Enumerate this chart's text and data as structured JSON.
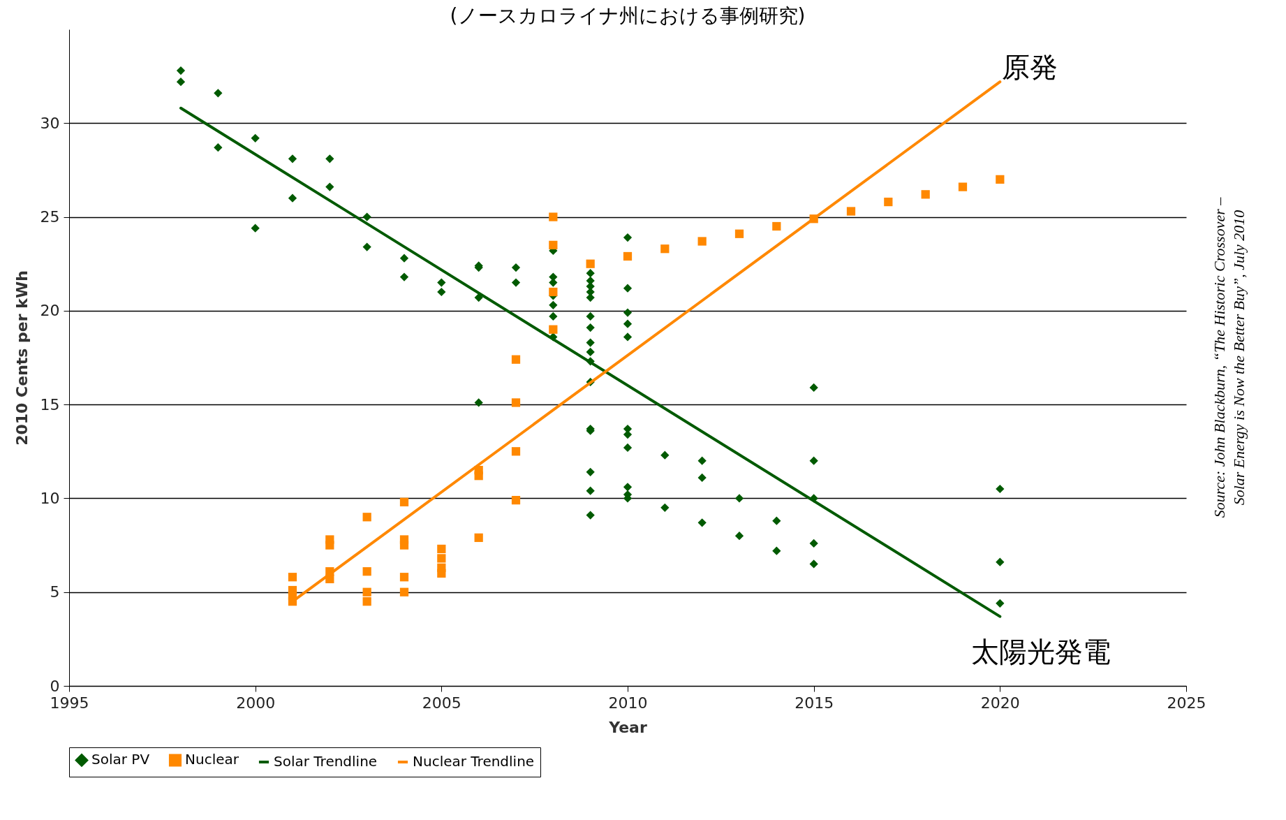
{
  "chart_data": {
    "type": "scatter",
    "title": "(ノースカロライナ州における事例研究)",
    "xlabel": "Year",
    "ylabel": "2010 Cents per kWh",
    "xlim": [
      1995,
      2025
    ],
    "xticks": [
      1995,
      2000,
      2005,
      2010,
      2015,
      2020,
      2025
    ],
    "ylim": [
      0,
      35
    ],
    "yticks": [
      0,
      5,
      10,
      15,
      20,
      25,
      30
    ],
    "grid": "y",
    "legend": "bottom",
    "series": [
      {
        "name": "Solar PV",
        "type": "scatter",
        "marker": "diamond",
        "color": "#005a00",
        "x": [
          1998,
          1998,
          1999,
          1999,
          2000,
          2000,
          2001,
          2001,
          2002,
          2002,
          2003,
          2003,
          2004,
          2004,
          2005,
          2005,
          2006,
          2006,
          2006,
          2006,
          2007,
          2007,
          2008,
          2008,
          2008,
          2008,
          2008,
          2008,
          2008,
          2009,
          2009,
          2009,
          2009,
          2009,
          2009,
          2009,
          2009,
          2009,
          2009,
          2009,
          2009,
          2009,
          2009,
          2009,
          2009,
          2010,
          2010,
          2010,
          2010,
          2010,
          2010,
          2010,
          2010,
          2010,
          2010,
          2010,
          2011,
          2011,
          2012,
          2012,
          2012,
          2013,
          2013,
          2014,
          2014,
          2015,
          2015,
          2015,
          2015,
          2015,
          2020,
          2020,
          2020
        ],
        "values": [
          32.8,
          32.2,
          31.6,
          28.7,
          29.2,
          24.4,
          28.1,
          26.0,
          28.1,
          26.6,
          25.0,
          23.4,
          22.8,
          21.8,
          21.5,
          21.0,
          22.4,
          22.3,
          20.7,
          15.1,
          22.3,
          21.5,
          23.2,
          21.8,
          21.5,
          20.8,
          20.3,
          19.7,
          18.6,
          22.0,
          21.6,
          21.3,
          21.0,
          20.7,
          19.7,
          19.1,
          18.3,
          17.8,
          17.3,
          16.2,
          13.7,
          13.6,
          11.4,
          10.4,
          9.1,
          23.9,
          21.2,
          19.9,
          19.3,
          18.6,
          13.7,
          13.4,
          12.7,
          10.6,
          10.2,
          10.0,
          12.3,
          9.5,
          12.0,
          11.1,
          8.7,
          10.0,
          8.0,
          8.8,
          7.2,
          15.9,
          12.0,
          10.0,
          7.6,
          6.5,
          10.5,
          6.6,
          4.4
        ]
      },
      {
        "name": "Nuclear",
        "type": "scatter",
        "marker": "square",
        "color": "#ff8800",
        "x": [
          2001,
          2001,
          2001,
          2001,
          2002,
          2002,
          2002,
          2002,
          2003,
          2003,
          2003,
          2003,
          2004,
          2004,
          2004,
          2004,
          2004,
          2005,
          2005,
          2005,
          2005,
          2006,
          2006,
          2006,
          2007,
          2007,
          2007,
          2007,
          2008,
          2008,
          2008,
          2008,
          2009,
          2010,
          2011,
          2012,
          2013,
          2014,
          2015,
          2016,
          2017,
          2018,
          2019,
          2020
        ],
        "values": [
          5.8,
          5.1,
          4.8,
          4.5,
          7.8,
          7.5,
          6.1,
          5.7,
          9.0,
          6.1,
          5.0,
          4.5,
          9.8,
          7.8,
          7.5,
          5.8,
          5.0,
          7.3,
          6.8,
          6.3,
          6.0,
          11.5,
          11.2,
          7.9,
          17.4,
          15.1,
          12.5,
          9.9,
          25.0,
          23.5,
          21.0,
          19.0,
          22.5,
          22.9,
          23.3,
          23.7,
          24.1,
          24.5,
          24.9,
          25.3,
          25.8,
          26.2,
          26.6,
          27.0
        ]
      },
      {
        "name": "Solar Trendline",
        "type": "line",
        "color": "#005a00",
        "line_style": "solid",
        "x": [
          1998,
          2020
        ],
        "values": [
          30.8,
          3.7
        ]
      },
      {
        "name": "Nuclear Trendline",
        "type": "line",
        "color": "#ff8800",
        "line_style": "solid",
        "x": [
          2001,
          2020
        ],
        "values": [
          4.5,
          32.2
        ]
      }
    ],
    "annotations": [
      "原発",
      "太陽光発電",
      "Source: John Blackburn,  “The Historic Crossover –\nSolar Energy is Now the Better Buy”, July 2010"
    ]
  }
}
